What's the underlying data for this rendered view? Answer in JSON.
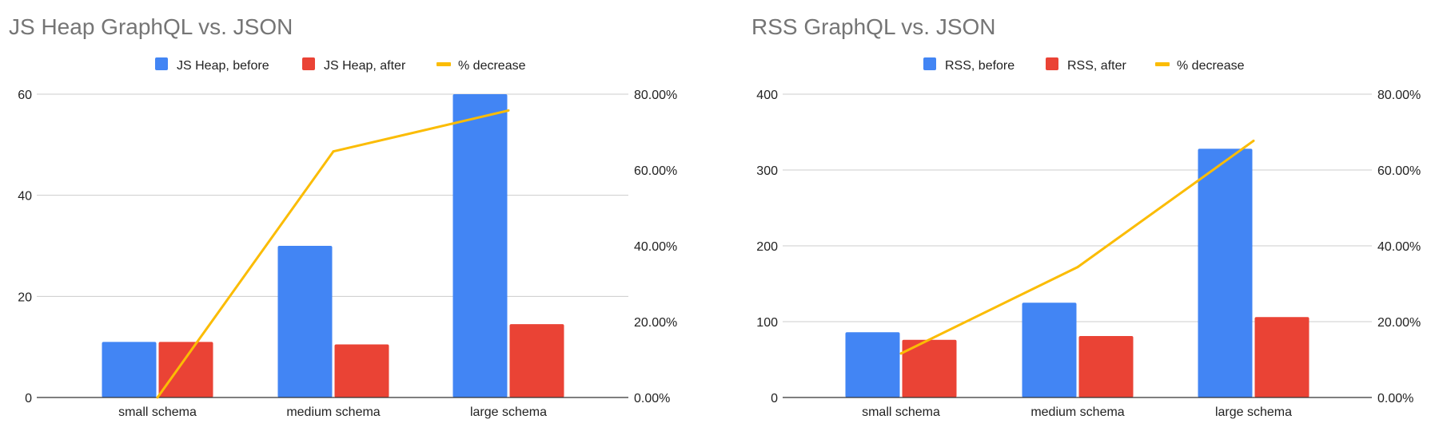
{
  "colors": {
    "before": "#4285f4",
    "after": "#ea4335",
    "decrease": "#fbbc04",
    "grid": "#cccccc",
    "axis": "#333333",
    "title": "#757575",
    "text": "#222222"
  },
  "chart_data": [
    {
      "type": "bar",
      "title": "JS Heap GraphQL vs. JSON",
      "categories": [
        "small schema",
        "medium schema",
        "large schema"
      ],
      "series": [
        {
          "name": "JS Heap, before",
          "axis": "left",
          "values": [
            11,
            30,
            60
          ]
        },
        {
          "name": "JS Heap, after",
          "axis": "left",
          "values": [
            11,
            10.5,
            14.5
          ]
        },
        {
          "name": "% decrease",
          "axis": "right",
          "type": "line",
          "values": [
            0,
            64.9,
            75.7
          ]
        }
      ],
      "ylim_left": [
        0,
        60
      ],
      "yticks_left": [
        "0",
        "20",
        "40",
        "60"
      ],
      "ylim_right": [
        0,
        80
      ],
      "yticks_right": [
        "0.00%",
        "20.00%",
        "40.00%",
        "60.00%",
        "80.00%"
      ],
      "grid": true,
      "legend": "top-center"
    },
    {
      "type": "bar",
      "title": "RSS GraphQL vs. JSON",
      "categories": [
        "small schema",
        "medium schema",
        "large schema"
      ],
      "series": [
        {
          "name": "RSS, before",
          "axis": "left",
          "values": [
            86,
            125,
            328
          ]
        },
        {
          "name": "RSS, after",
          "axis": "left",
          "values": [
            76,
            81,
            106
          ]
        },
        {
          "name": "% decrease",
          "axis": "right",
          "type": "line",
          "values": [
            11.6,
            34.4,
            67.7
          ]
        }
      ],
      "ylim_left": [
        0,
        400
      ],
      "yticks_left": [
        "0",
        "100",
        "200",
        "300",
        "400"
      ],
      "ylim_right": [
        0,
        80
      ],
      "yticks_right": [
        "0.00%",
        "20.00%",
        "40.00%",
        "60.00%",
        "80.00%"
      ],
      "grid": true,
      "legend": "top-center"
    }
  ]
}
